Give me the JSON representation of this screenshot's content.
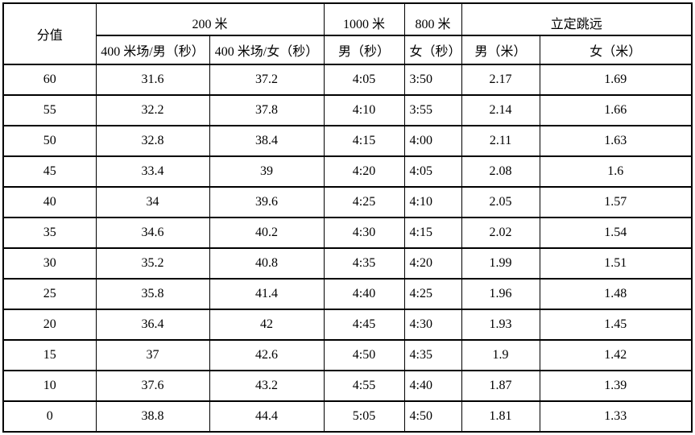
{
  "colors": {
    "border": "#000000",
    "text": "#000000",
    "background": "#ffffff"
  },
  "table": {
    "columns": {
      "score": "分值",
      "groups": [
        {
          "label": "200 米",
          "span": 2
        },
        {
          "label": "1000 米",
          "span": 1
        },
        {
          "label": "800 米",
          "span": 1
        },
        {
          "label": "立定跳远",
          "span": 2
        }
      ],
      "subheaders": [
        "400 米场/男（秒）",
        "400 米场/女（秒）",
        "男（秒）",
        "女（秒）",
        "男（米）",
        "女（米）"
      ]
    },
    "rows": [
      {
        "score": "60",
        "values": [
          "31.6",
          "37.2",
          "4:05",
          "3:50",
          "2.17",
          "1.69"
        ]
      },
      {
        "score": "55",
        "values": [
          "32.2",
          "37.8",
          "4:10",
          "3:55",
          "2.14",
          "1.66"
        ]
      },
      {
        "score": "50",
        "values": [
          "32.8",
          "38.4",
          "4:15",
          "4:00",
          "2.11",
          "1.63"
        ]
      },
      {
        "score": "45",
        "values": [
          "33.4",
          "39",
          "4:20",
          "4:05",
          "2.08",
          "1.6"
        ]
      },
      {
        "score": "40",
        "values": [
          "34",
          "39.6",
          "4:25",
          "4:10",
          "2.05",
          "1.57"
        ]
      },
      {
        "score": "35",
        "values": [
          "34.6",
          "40.2",
          "4:30",
          "4:15",
          "2.02",
          "1.54"
        ]
      },
      {
        "score": "30",
        "values": [
          "35.2",
          "40.8",
          "4:35",
          "4:20",
          "1.99",
          "1.51"
        ]
      },
      {
        "score": "25",
        "values": [
          "35.8",
          "41.4",
          "4:40",
          "4:25",
          "1.96",
          "1.48"
        ]
      },
      {
        "score": "20",
        "values": [
          "36.4",
          "42",
          "4:45",
          "4:30",
          "1.93",
          "1.45"
        ]
      },
      {
        "score": "15",
        "values": [
          "37",
          "42.6",
          "4:50",
          "4:35",
          "1.9",
          "1.42"
        ]
      },
      {
        "score": "10",
        "values": [
          "37.6",
          "43.2",
          "4:55",
          "4:40",
          "1.87",
          "1.39"
        ]
      },
      {
        "score": "0",
        "values": [
          "38.8",
          "44.4",
          "5:05",
          "4:50",
          "1.81",
          "1.33"
        ]
      }
    ]
  }
}
